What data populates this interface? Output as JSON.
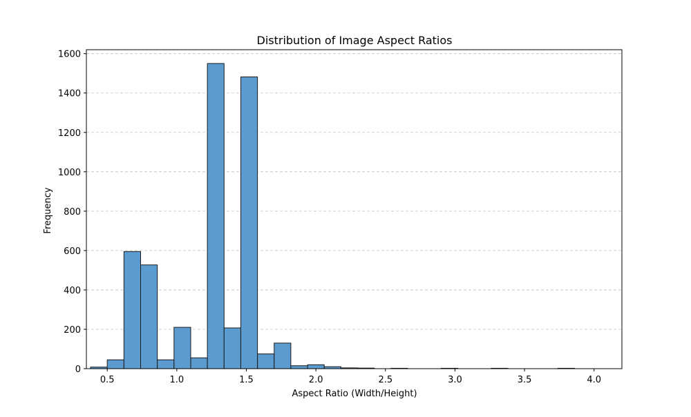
{
  "chart_data": {
    "type": "bar",
    "title": "Distribution of Image Aspect Ratios",
    "xlabel": "Aspect Ratio (Width/Height)",
    "ylabel": "Frequency",
    "bin_edges": [
      0.38,
      0.5,
      0.62,
      0.74,
      0.86,
      0.98,
      1.1,
      1.22,
      1.34,
      1.46,
      1.58,
      1.7,
      1.82,
      1.94,
      2.06,
      2.18,
      2.3,
      2.42,
      2.54,
      2.66,
      2.78,
      2.9,
      3.02,
      3.14,
      3.26,
      3.38,
      3.5,
      3.62,
      3.74,
      3.86,
      3.98
    ],
    "values": [
      8,
      45,
      595,
      527,
      45,
      210,
      55,
      1550,
      207,
      1482,
      75,
      130,
      15,
      20,
      10,
      4,
      3,
      0,
      2,
      0,
      0,
      2,
      0,
      0,
      2,
      0,
      0,
      0,
      2,
      0
    ],
    "xlim": [
      0.35,
      4.2
    ],
    "ylim": [
      0,
      1620
    ],
    "xticks": [
      0.5,
      1.0,
      1.5,
      2.0,
      2.5,
      3.0,
      3.5,
      4.0
    ],
    "xtick_labels": [
      "0.5",
      "1.0",
      "1.5",
      "2.0",
      "2.5",
      "3.0",
      "3.5",
      "4.0"
    ],
    "yticks": [
      0,
      200,
      400,
      600,
      800,
      1000,
      1200,
      1400,
      1600
    ],
    "ytick_labels": [
      "0",
      "200",
      "400",
      "600",
      "800",
      "1000",
      "1200",
      "1400",
      "1600"
    ],
    "grid": "y-axis dashed",
    "bar_color": "#5b9bd0",
    "edge_color": "#1a1a1a"
  }
}
